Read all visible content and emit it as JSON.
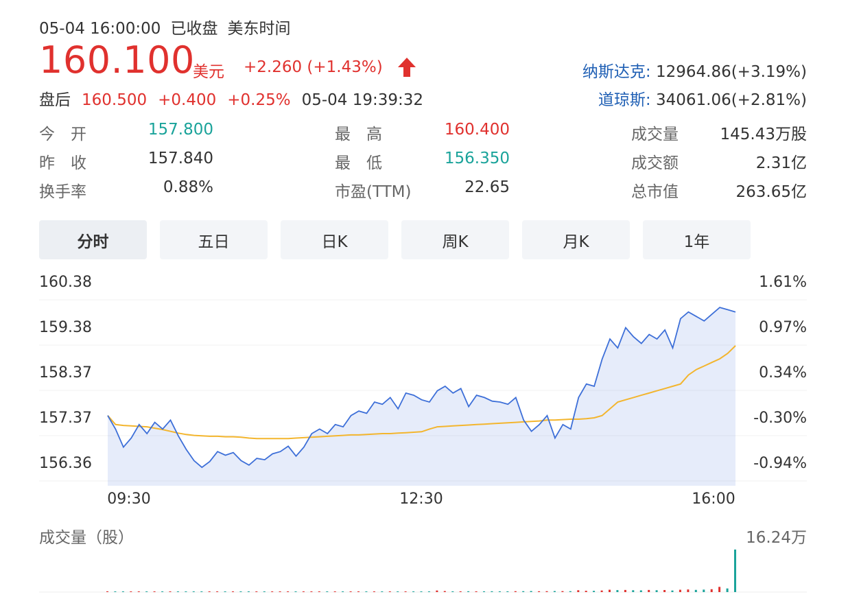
{
  "header": {
    "datetime": "05-04 16:00:00",
    "status": "已收盘",
    "tz": "美东时间",
    "price": "160.100",
    "currency": "美元",
    "change": "+2.260 (+1.43%)",
    "up_color": "#e0312e",
    "down_color": "#1aa39a",
    "after_hours": {
      "label": "盘后",
      "price": "160.500",
      "change": "+0.400",
      "pct": "+0.25%",
      "time": "05-04 19:39:32"
    },
    "indices": [
      {
        "name": "纳斯达克:",
        "value": "12964.86(+3.19%)"
      },
      {
        "name": "道琼斯:",
        "value": "34061.06(+2.81%)"
      }
    ]
  },
  "stats": [
    {
      "label": "今　开",
      "value": "157.800",
      "tone": "green"
    },
    {
      "label": "最　高",
      "value": "160.400",
      "tone": "red"
    },
    {
      "label": "成交量",
      "value": "145.43万股",
      "tone": ""
    },
    {
      "label": "昨　收",
      "value": "157.840",
      "tone": ""
    },
    {
      "label": "最　低",
      "value": "156.350",
      "tone": "green"
    },
    {
      "label": "成交额",
      "value": "2.31亿",
      "tone": ""
    },
    {
      "label": "换手率",
      "value": "0.88%",
      "tone": ""
    },
    {
      "label": "市盈(TTM)",
      "value": "22.65",
      "tone": ""
    },
    {
      "label": "总市值",
      "value": "263.65亿",
      "tone": ""
    }
  ],
  "tabs": [
    "分时",
    "五日",
    "日K",
    "周K",
    "月K",
    "1年"
  ],
  "active_tab": 0,
  "chart_data": {
    "type": "line",
    "y_ticks_left": [
      "160.38",
      "159.38",
      "158.37",
      "157.37",
      "156.36"
    ],
    "y_ticks_right": [
      "1.61%",
      "0.97%",
      "0.34%",
      "-0.30%",
      "-0.94%"
    ],
    "ylim": [
      156.36,
      160.38
    ],
    "x_ticks": [
      "09:30",
      "12:30",
      "16:00"
    ],
    "line_color": "#3d6fd8",
    "avg_color": "#f3b52d",
    "series": [
      {
        "values": [
          157.4,
          157.1,
          156.7,
          156.9,
          157.2,
          157.0,
          157.25,
          157.1,
          157.3,
          156.95,
          156.65,
          156.4,
          156.25,
          156.38,
          156.6,
          156.52,
          156.58,
          156.4,
          156.3,
          156.45,
          156.42,
          156.55,
          156.6,
          156.72,
          156.5,
          156.7,
          157.0,
          157.1,
          157.0,
          157.2,
          157.15,
          157.4,
          157.5,
          157.45,
          157.7,
          157.65,
          157.8,
          157.55,
          157.9,
          157.85,
          157.75,
          157.7,
          157.95,
          158.05,
          157.9,
          158.0,
          157.6,
          157.85,
          157.8,
          157.72,
          157.7,
          157.65,
          157.8,
          157.3,
          157.05,
          157.2,
          157.4,
          156.9,
          157.2,
          157.1,
          157.8,
          158.1,
          158.05,
          158.65,
          159.1,
          158.9,
          159.35,
          159.15,
          159.0,
          159.2,
          159.1,
          159.3,
          158.9,
          159.55,
          159.7,
          159.6,
          159.5,
          159.65,
          159.8,
          159.75,
          159.7
        ]
      },
      {
        "values": [
          157.4,
          157.2,
          157.18,
          157.17,
          157.16,
          157.15,
          157.12,
          157.09,
          157.05,
          157.01,
          156.98,
          156.96,
          156.95,
          156.94,
          156.94,
          156.93,
          156.93,
          156.92,
          156.9,
          156.89,
          156.89,
          156.89,
          156.89,
          156.89,
          156.9,
          156.91,
          156.92,
          156.93,
          156.94,
          156.95,
          156.96,
          156.97,
          156.97,
          156.98,
          156.99,
          157.0,
          157.0,
          157.01,
          157.02,
          157.03,
          157.04,
          157.1,
          157.15,
          157.16,
          157.17,
          157.18,
          157.19,
          157.2,
          157.21,
          157.22,
          157.23,
          157.24,
          157.25,
          157.26,
          157.27,
          157.28,
          157.3,
          157.3,
          157.31,
          157.32,
          157.32,
          157.33,
          157.35,
          157.4,
          157.55,
          157.7,
          157.75,
          157.8,
          157.85,
          157.9,
          157.95,
          158.0,
          158.05,
          158.1,
          158.3,
          158.42,
          158.5,
          158.58,
          158.66,
          158.78,
          158.95
        ]
      }
    ],
    "volume": {
      "label": "成交量（股）",
      "max_label": "16.24万",
      "max": 162400,
      "values": [
        3000,
        2000,
        2500,
        1800,
        2200,
        2000,
        1500,
        1800,
        2100,
        1700,
        1900,
        1600,
        1500,
        1700,
        2000,
        1800,
        1600,
        1500,
        1800,
        2100,
        1900,
        1700,
        1600,
        1500,
        1800,
        2000,
        2200,
        1900,
        1700,
        1800,
        2000,
        2300,
        2100,
        1900,
        2200,
        2400,
        2100,
        2000,
        2300,
        2200,
        2000,
        2500,
        6000,
        4000,
        3000,
        2800,
        3200,
        3000,
        2900,
        3100,
        3000,
        2800,
        3300,
        3500,
        3800,
        3200,
        3400,
        4000,
        3600,
        3500,
        7000,
        5000,
        4800,
        6000,
        9000,
        7500,
        8000,
        7000,
        6500,
        8000,
        7200,
        7800,
        6000,
        9000,
        10000,
        8500,
        9500,
        11000,
        20000,
        14000,
        162400
      ],
      "up_color": "#e0312e",
      "down_color": "#1aa39a",
      "last_color": "#1aa39a"
    }
  }
}
